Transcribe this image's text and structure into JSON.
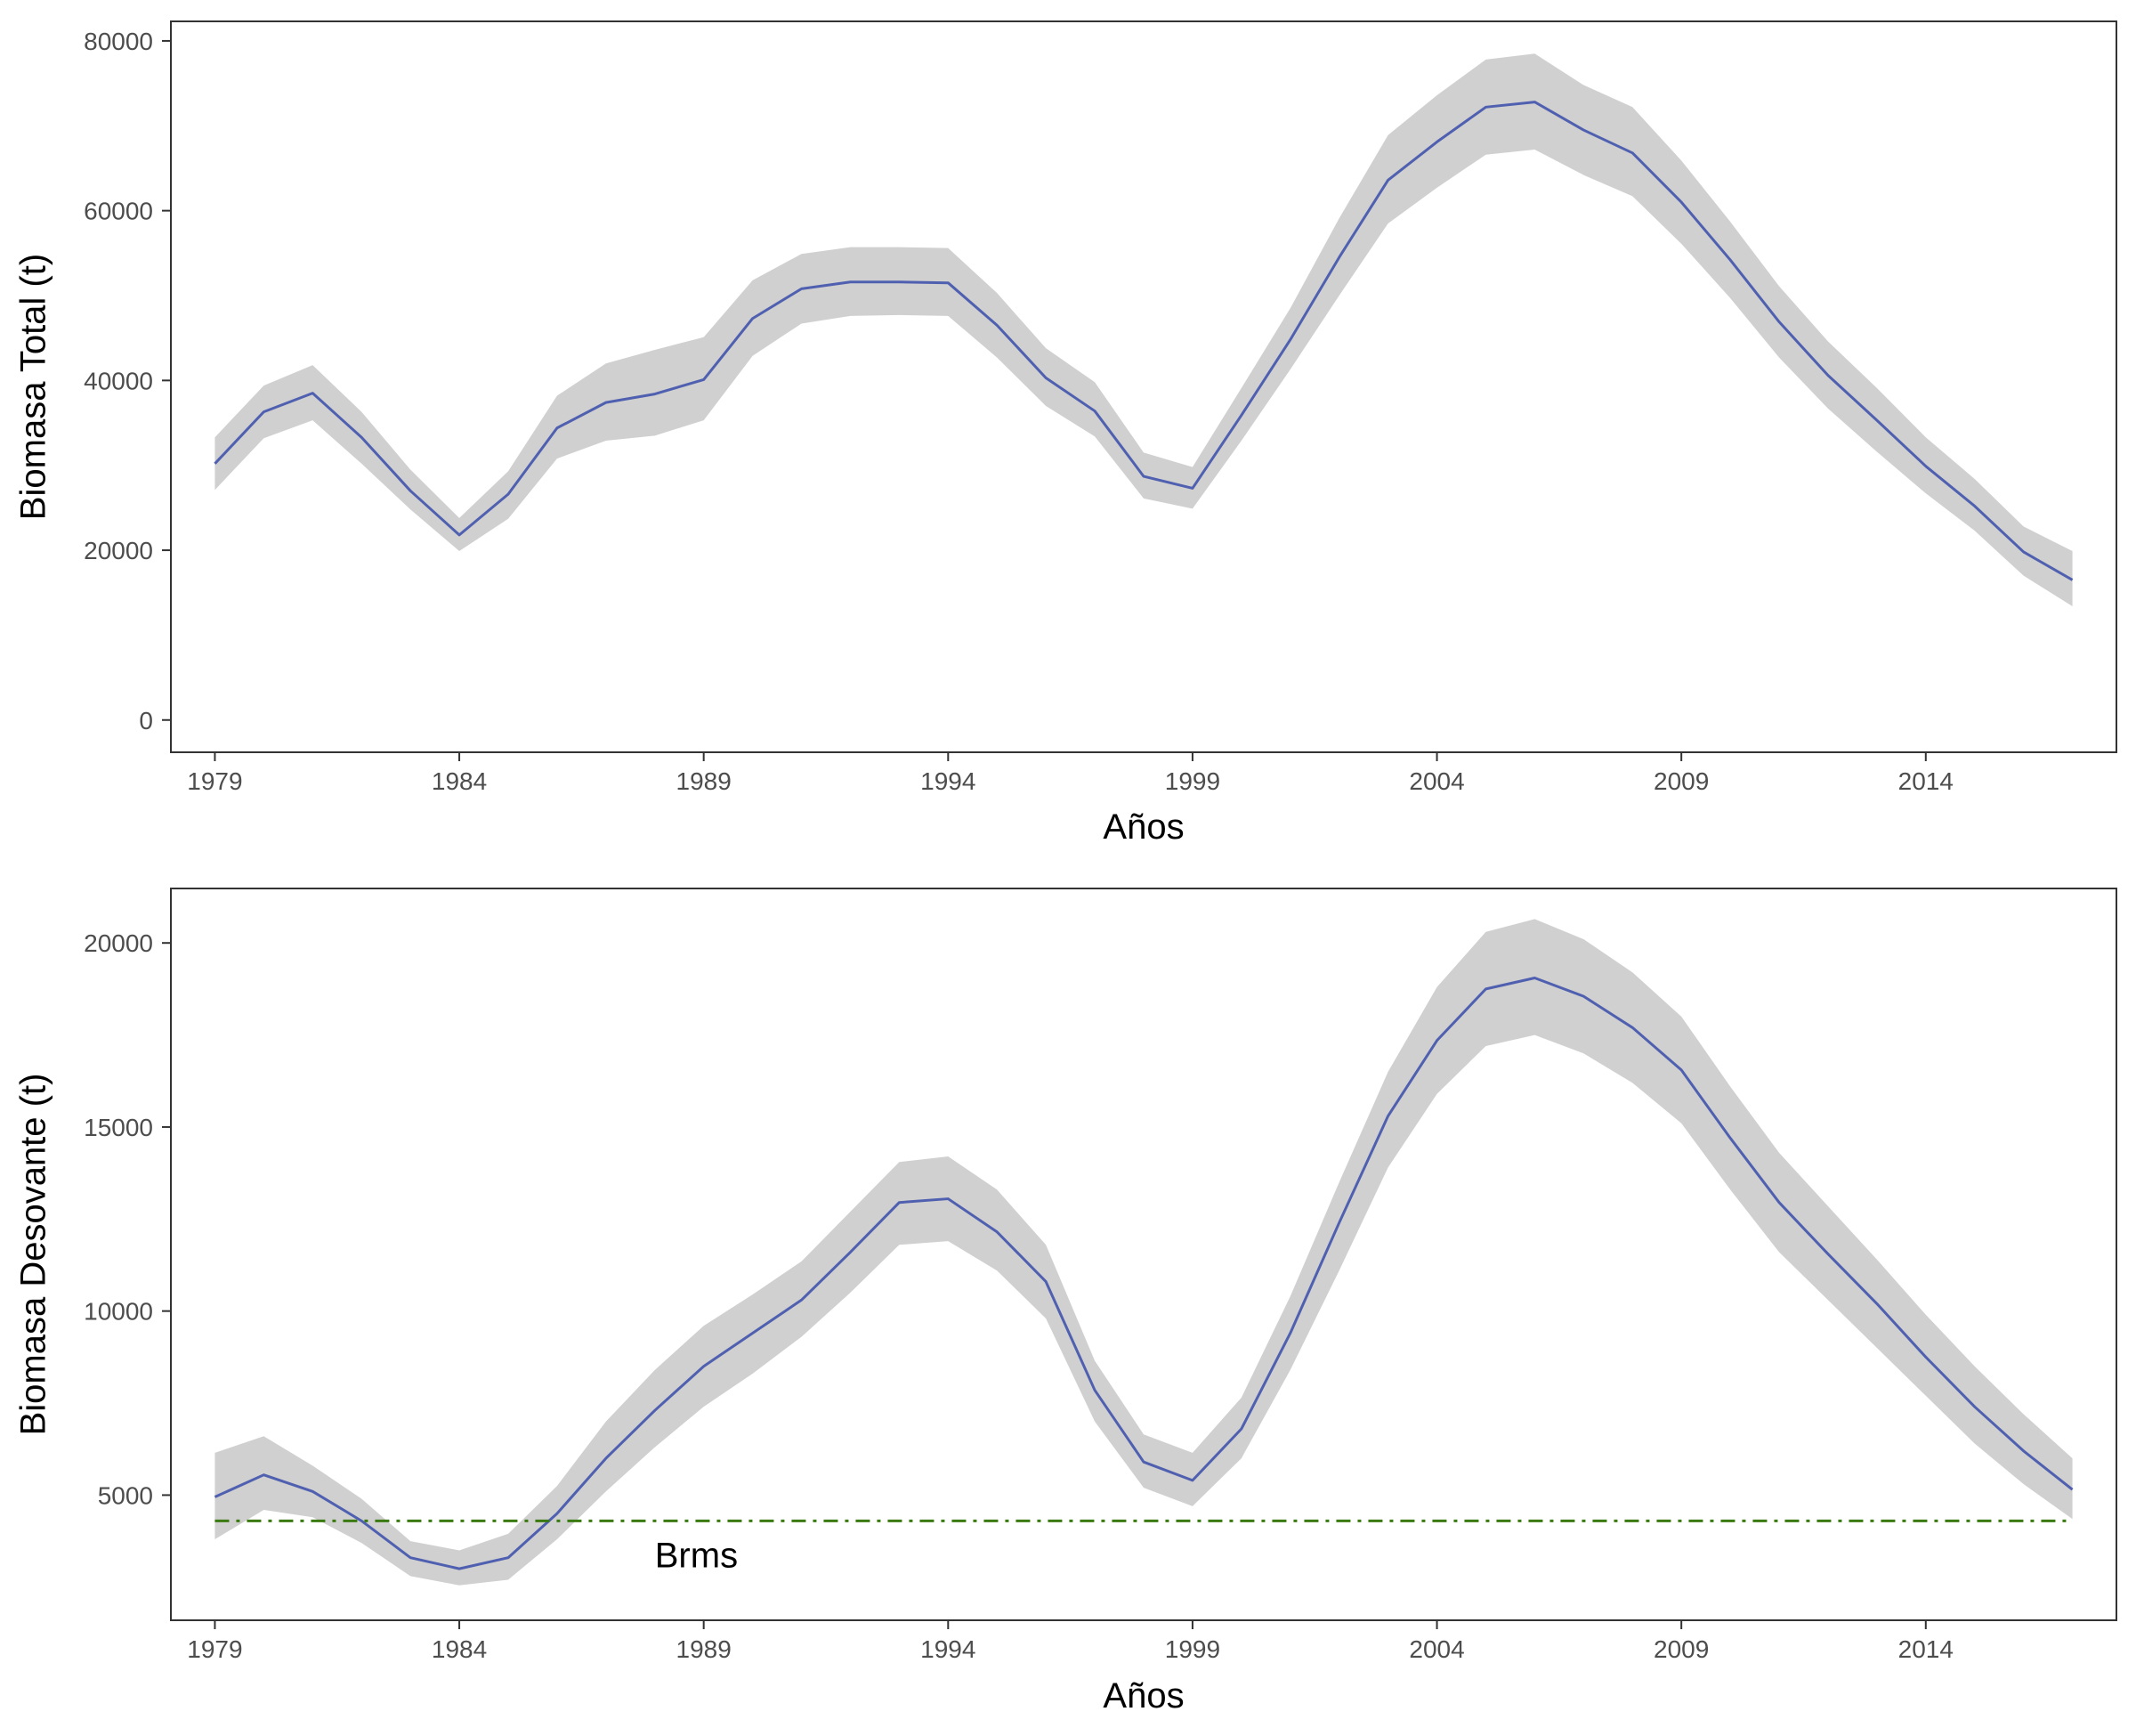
{
  "chart_data": [
    {
      "type": "line",
      "title": "",
      "xlabel": "Años",
      "ylabel": "Biomasa Total (t)",
      "xlim": [
        1978.1,
        2017.9
      ],
      "ylim": [
        -3800,
        82300
      ],
      "x_ticks": [
        1979,
        1984,
        1989,
        1994,
        1999,
        2004,
        2009,
        2014
      ],
      "y_ticks": [
        0,
        20000,
        40000,
        60000,
        80000
      ],
      "grid": false,
      "colors": {
        "line": "#5060b0",
        "band": "#d0d0d0"
      },
      "series": [
        {
          "x": [
            1979,
            1980,
            1981,
            1982,
            1983,
            1984,
            1985,
            1986,
            1987,
            1988,
            1989,
            1990,
            1991,
            1992,
            1993,
            1994,
            1995,
            1996,
            1997,
            1998,
            1999,
            2000,
            2001,
            2002,
            2003,
            2004,
            2005,
            2006,
            2007,
            2008,
            2009,
            2010,
            2011,
            2012,
            2013,
            2014,
            2015,
            2016,
            2017
          ],
          "values": [
            30200,
            36300,
            38500,
            33300,
            27000,
            21800,
            26600,
            34400,
            37400,
            38400,
            40100,
            47300,
            50800,
            51600,
            51600,
            51500,
            46500,
            40300,
            36400,
            28700,
            27300,
            35900,
            44800,
            54500,
            63600,
            68100,
            72200,
            72800,
            69500,
            66800,
            61000,
            54200,
            46900,
            40600,
            35300,
            29900,
            25200,
            19800,
            16500
          ],
          "lower": [
            27100,
            33200,
            35300,
            30200,
            24800,
            19900,
            23700,
            30800,
            32900,
            33500,
            35300,
            42900,
            46700,
            47600,
            47700,
            47600,
            42700,
            37000,
            33400,
            26100,
            24900,
            32900,
            41300,
            50000,
            58500,
            62700,
            66600,
            67200,
            64200,
            61700,
            56100,
            49700,
            42700,
            36700,
            31600,
            26700,
            22300,
            17000,
            13400
          ],
          "upper": [
            33300,
            39400,
            41800,
            36300,
            29500,
            23800,
            29300,
            38200,
            42000,
            43600,
            45100,
            51800,
            54900,
            55700,
            55700,
            55600,
            50300,
            43800,
            39800,
            31500,
            29800,
            39100,
            48500,
            59100,
            68900,
            73600,
            77800,
            78500,
            74800,
            72200,
            65900,
            58700,
            51100,
            44600,
            39100,
            33300,
            28400,
            22800,
            19900
          ]
        }
      ]
    },
    {
      "type": "line",
      "title": "",
      "xlabel": "Años",
      "ylabel": "Biomasa Desovante (t)",
      "xlim": [
        1978.1,
        2017.9
      ],
      "ylim": [
        1600,
        21480
      ],
      "x_ticks": [
        1979,
        1984,
        1989,
        1994,
        1999,
        2004,
        2009,
        2014
      ],
      "y_ticks": [
        5000,
        10000,
        15000,
        20000
      ],
      "grid": false,
      "colors": {
        "line": "#5060b0",
        "band": "#d0d0d0",
        "reference": "#3a7a10"
      },
      "reference_line": {
        "label": "Brms",
        "value": 4300,
        "style": "dash-dot"
      },
      "series": [
        {
          "x": [
            1979,
            1980,
            1981,
            1982,
            1983,
            1984,
            1985,
            1986,
            1987,
            1988,
            1989,
            1990,
            1991,
            1992,
            1993,
            1994,
            1995,
            1996,
            1997,
            1998,
            1999,
            2000,
            2001,
            2002,
            2003,
            2004,
            2005,
            2006,
            2007,
            2008,
            2009,
            2010,
            2011,
            2012,
            2013,
            2014,
            2015,
            2016,
            2017
          ],
          "values": [
            4950,
            5550,
            5100,
            4300,
            3300,
            3000,
            3300,
            4500,
            6000,
            7300,
            8500,
            9400,
            10300,
            11600,
            12950,
            13050,
            12150,
            10800,
            7850,
            5900,
            5400,
            6800,
            9400,
            12400,
            15300,
            17350,
            18750,
            19050,
            18550,
            17700,
            16550,
            14700,
            12950,
            11550,
            10200,
            8750,
            7400,
            6200,
            5150
          ],
          "lower": [
            3800,
            4600,
            4400,
            3700,
            2800,
            2550,
            2700,
            3800,
            5100,
            6300,
            7400,
            8300,
            9300,
            10500,
            11800,
            11900,
            11100,
            9800,
            7000,
            5200,
            4700,
            6000,
            8400,
            11100,
            13900,
            15900,
            17200,
            17500,
            17000,
            16200,
            15100,
            13300,
            11600,
            10300,
            9000,
            7700,
            6400,
            5300,
            4350
          ],
          "upper": [
            6150,
            6600,
            5800,
            4900,
            3750,
            3500,
            3950,
            5250,
            7000,
            8400,
            9600,
            10450,
            11350,
            12700,
            14050,
            14200,
            13300,
            11800,
            8650,
            6650,
            6150,
            7650,
            10400,
            13500,
            16500,
            18800,
            20300,
            20650,
            20100,
            19200,
            18000,
            16100,
            14300,
            12850,
            11400,
            9900,
            8500,
            7200,
            6000
          ]
        }
      ]
    }
  ]
}
